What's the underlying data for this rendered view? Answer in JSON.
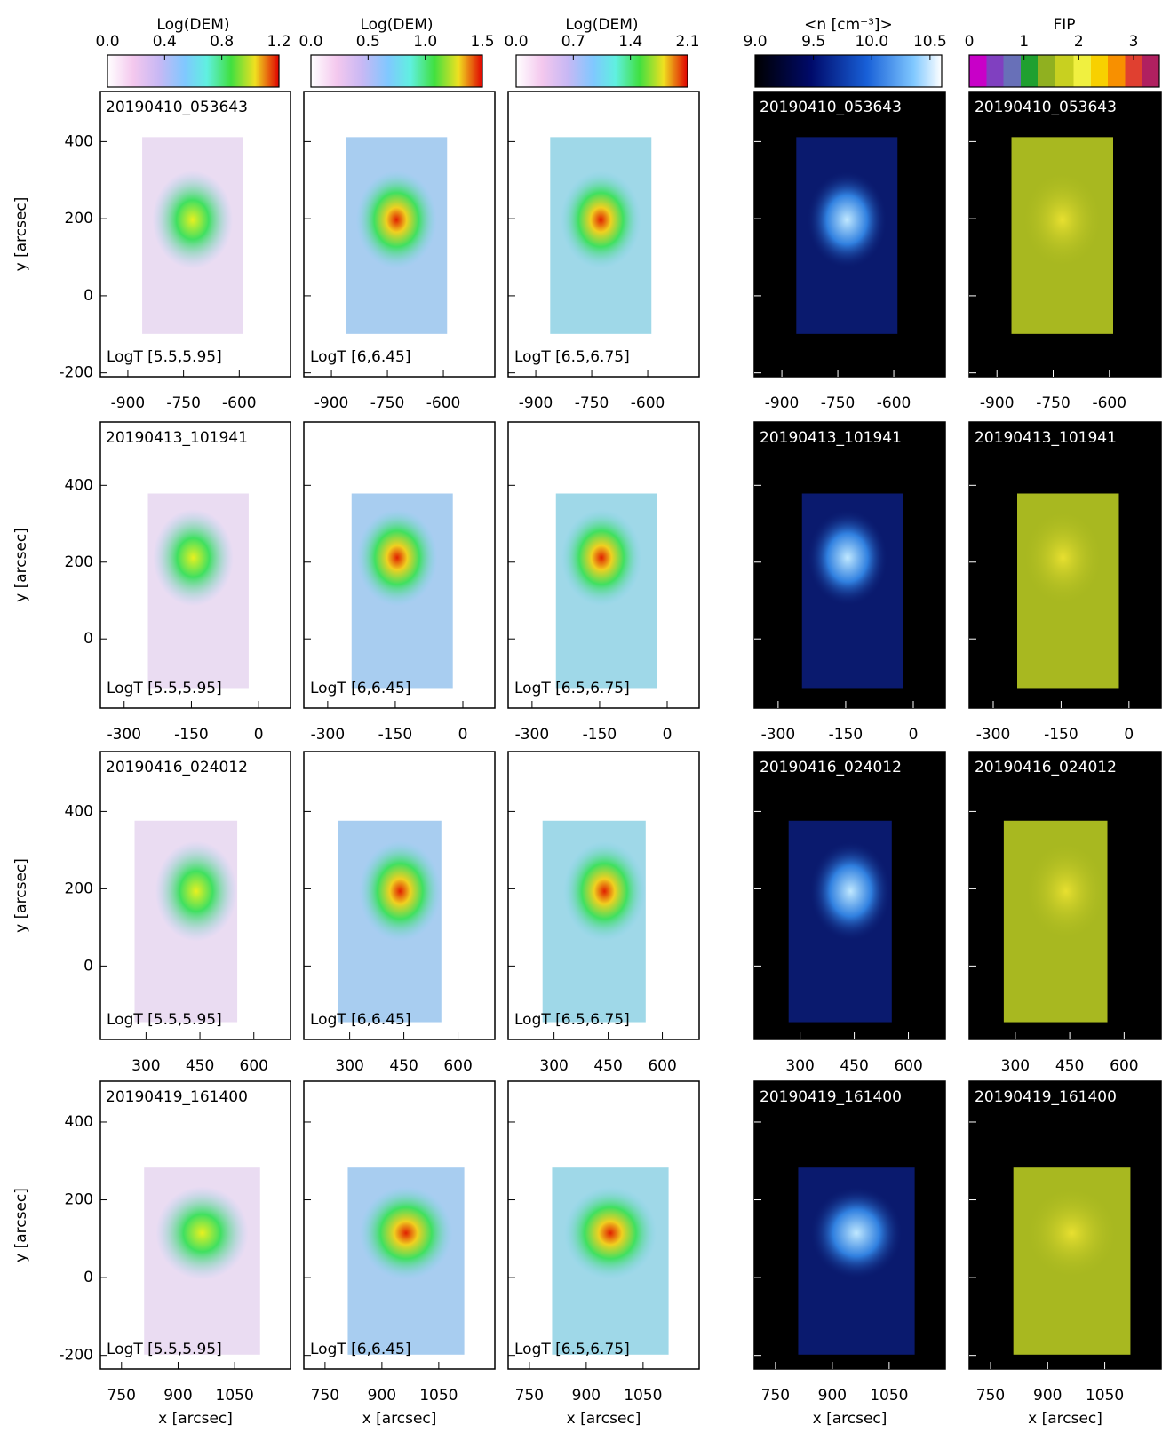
{
  "colorbars": [
    {
      "title": "Log(DEM)",
      "lim": [
        0,
        1.2
      ],
      "ticks": [
        {
          "value": 0,
          "label": "0.0"
        },
        0.4,
        0.8,
        1.2
      ]
    },
    {
      "title": "Log(DEM)",
      "lim": [
        0,
        1.5
      ],
      "ticks": [
        {
          "value": 0,
          "label": "0.0"
        },
        0.5,
        {
          "value": 1,
          "label": "1.0"
        },
        1.5
      ]
    },
    {
      "title": "Log(DEM)",
      "lim": [
        0,
        2.1
      ],
      "ticks": [
        {
          "value": 0,
          "label": "0.0"
        },
        0.7,
        1.4,
        2.1
      ]
    },
    {
      "title": "<n [cm⁻³]>",
      "lim": [
        9.0,
        10.6
      ],
      "ticks": [
        {
          "value": 9,
          "label": "9.0"
        },
        9.5,
        {
          "value": 10,
          "label": "10.0"
        },
        10.5
      ]
    },
    {
      "title": "FIP",
      "lim": [
        0,
        3.47
      ],
      "ticks": [
        0,
        1,
        2,
        3
      ]
    }
  ],
  "temperature_labels": [
    "LogT [5.5,5.95]",
    "LogT [6,6.45]",
    "LogT [6.5,6.75]"
  ],
  "y_axis_label": "y [arcsec]",
  "x_axis_label": "x [arcsec]",
  "rows": [
    {
      "timestamp": "20190410_053643",
      "xlim": [
        -974,
        -462
      ],
      "xticks": [
        -900,
        -750,
        -600
      ],
      "ylim": [
        -210,
        530
      ],
      "yticks": [
        -200,
        0,
        200,
        400
      ]
    },
    {
      "timestamp": "20190413_101941",
      "xlim": [
        -353,
        71
      ],
      "xticks": [
        -300,
        -150,
        0
      ],
      "ylim": [
        -180,
        565
      ],
      "yticks": [
        0,
        200,
        400
      ]
    },
    {
      "timestamp": "20190416_024012",
      "xlim": [
        173,
        702
      ],
      "xticks": [
        300,
        450,
        600
      ],
      "ylim": [
        -190,
        555
      ],
      "yticks": [
        0,
        200,
        400
      ]
    },
    {
      "timestamp": "20190419_161400",
      "xlim": [
        694,
        1198
      ],
      "xticks": [
        750,
        900,
        1050
      ],
      "ylim": [
        -235,
        505
      ],
      "yticks": [
        -200,
        0,
        200,
        400
      ]
    }
  ]
}
